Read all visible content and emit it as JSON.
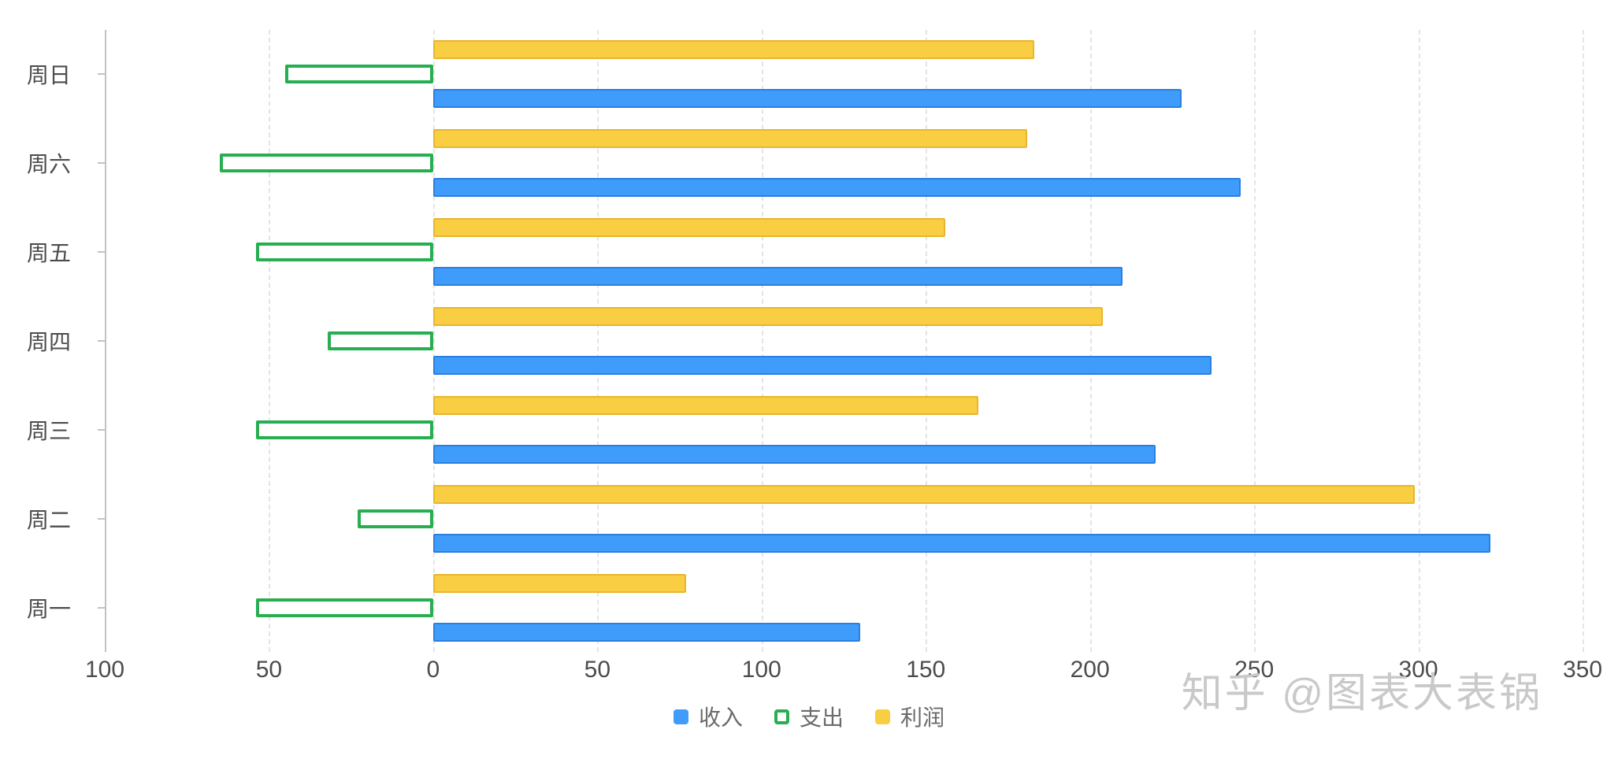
{
  "chart_data": {
    "type": "bar",
    "orientation": "horizontal",
    "title": "",
    "xlabel": "",
    "ylabel": "",
    "categories": [
      "周一",
      "周二",
      "周三",
      "周四",
      "周五",
      "周六",
      "周日"
    ],
    "category_keys": [
      "mon",
      "tue",
      "wed",
      "thu",
      "fri",
      "sat",
      "sun"
    ],
    "series": [
      {
        "name": "收入",
        "key": "income",
        "style": "filled",
        "color": "#3f9cfb",
        "border": "#2a7fe0",
        "values": [
          130,
          322,
          220,
          237,
          210,
          246,
          228
        ]
      },
      {
        "name": "支出",
        "key": "expense",
        "style": "hollow",
        "color": "#27ae51",
        "border": "#27ae51",
        "values": [
          -54,
          -23,
          -54,
          -32,
          -54,
          -65,
          -45
        ]
      },
      {
        "name": "利润",
        "key": "profit",
        "style": "filled",
        "color": "#f9ce42",
        "border": "#e8b62c",
        "values": [
          77,
          299,
          166,
          204,
          156,
          181,
          183
        ]
      }
    ],
    "xlim": [
      -100,
      350
    ],
    "x_ticks": [
      -100,
      -50,
      0,
      50,
      100,
      150,
      200,
      250,
      300,
      350
    ],
    "tick_labels": [
      "100",
      "50",
      "0",
      "50",
      "100",
      "150",
      "200",
      "250",
      "300",
      "350"
    ],
    "grid": "vertical-dashed",
    "legend_position": "bottom-center",
    "bar_draw_order_top_to_bottom": [
      "利润",
      "支出",
      "收入"
    ],
    "category_display_order_top_to_bottom": [
      "周日",
      "周六",
      "周五",
      "周四",
      "周三",
      "周二",
      "周一"
    ]
  },
  "watermark": "知乎 @图表大表锅",
  "colors": {
    "income_blue": "#3f9cfb",
    "expense_green": "#27ae51",
    "profit_yellow": "#f9ce42",
    "axis_gray": "#c2c2c2",
    "grid_gray": "#e4e4e4",
    "label_gray": "#4c4c4c",
    "watermark_gray": "#c9c9c9"
  }
}
